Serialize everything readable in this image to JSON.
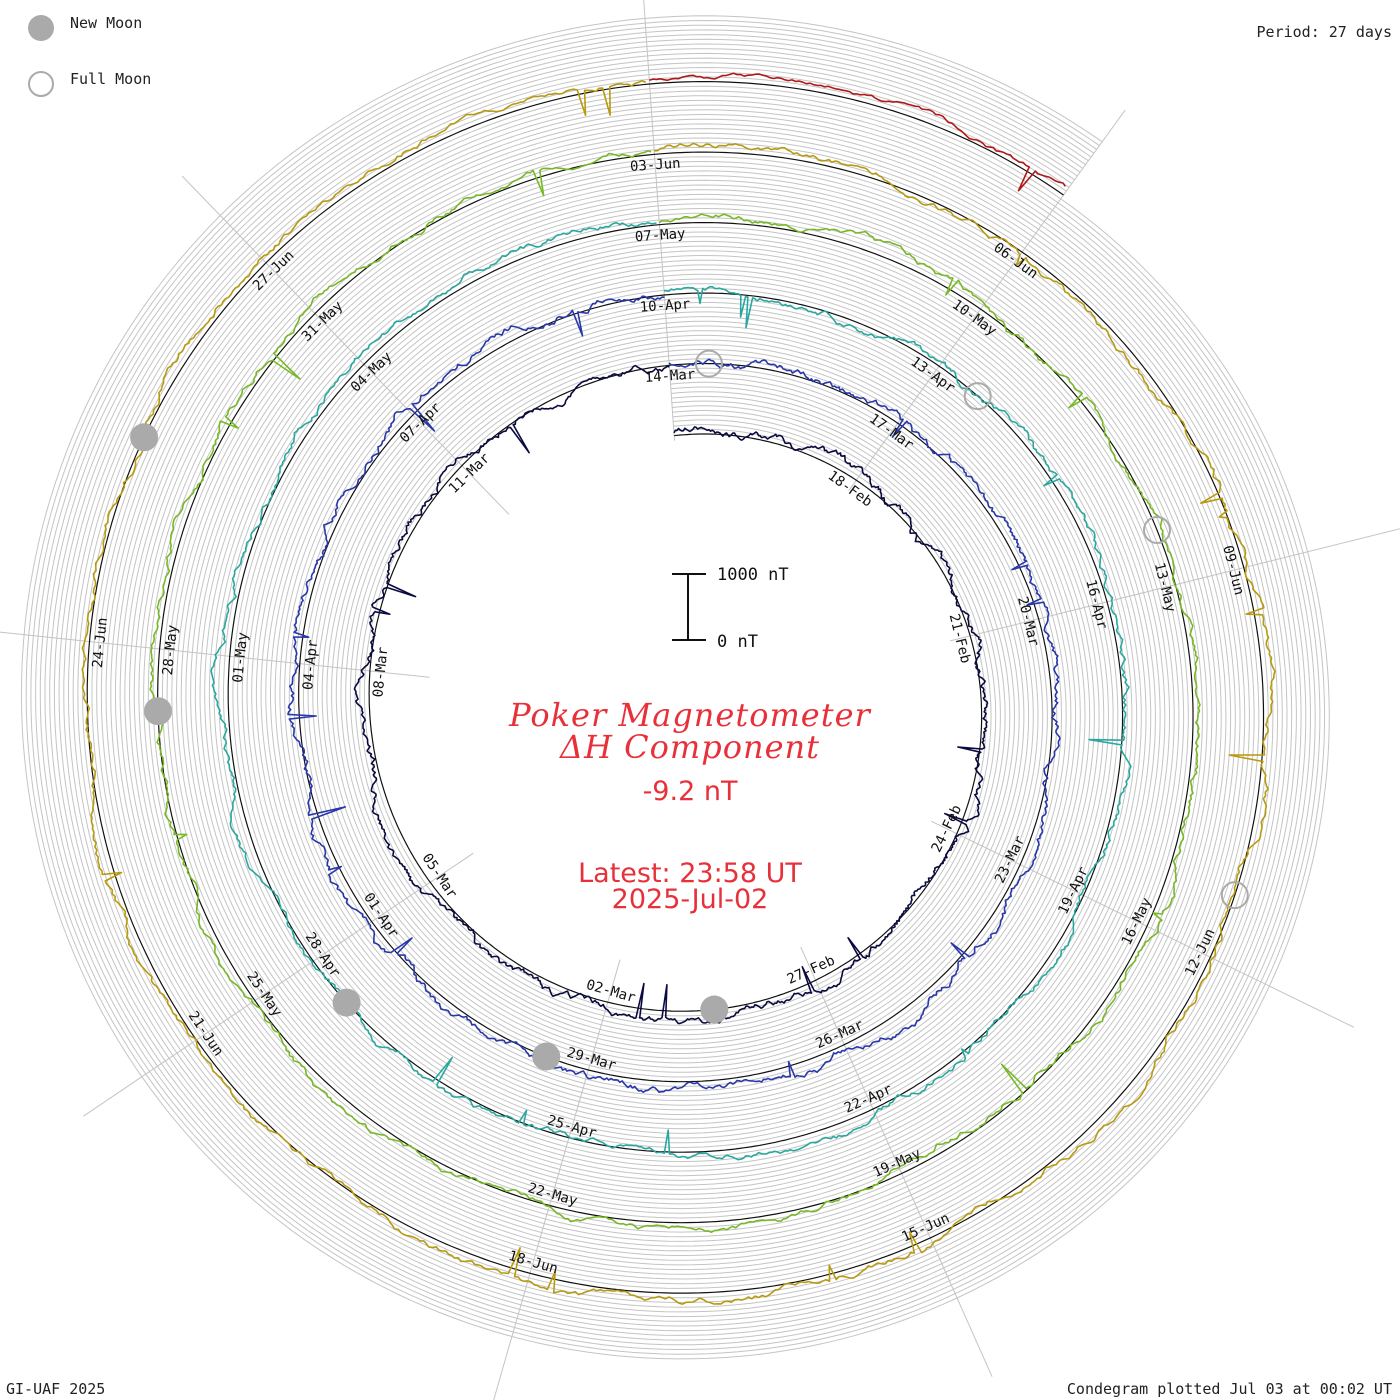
{
  "legend": {
    "new_moon_label": "New Moon",
    "full_moon_label": "Full Moon"
  },
  "period_label": "Period: 27 days",
  "footer": {
    "left": "GI-UAF 2025",
    "right": "Condegram plotted Jul 03 at 00:02 UT"
  },
  "title": {
    "line1": "Poker Magnetometer",
    "line2": "ΔH Component",
    "value": "-9.2 nT",
    "latest": "Latest: 23:58 UT",
    "date": "2025-Jul-02"
  },
  "colors": {
    "new_moon": "#aaaaaa",
    "full_moon": "#aaaaaa",
    "title": "#e8303a",
    "grid": "#c4c4c4",
    "baseline": "#111111"
  },
  "chart_data": {
    "type": "line",
    "title": "Poker Magnetometer ΔH Component",
    "period_days": 27,
    "scale_bar": {
      "max_label": "1000 nT",
      "min_label": "0 nT",
      "max_nT": 1000,
      "min_nT": 0
    },
    "latest_value_nT": -9.2,
    "series": [
      {
        "name": "",
        "start": "2025-02-15",
        "end": "2025-03-13",
        "color": "#0a0a40",
        "activity": 0.9,
        "date_labels": [
          "18-Feb",
          "21-Feb",
          "24-Feb",
          "27-Feb",
          "02-Mar",
          "05-Mar",
          "08-Mar",
          "11-Mar"
        ]
      },
      {
        "name": "",
        "start": "2025-03-14",
        "end": "2025-04-09",
        "color": "#2838a8",
        "activity": 0.9,
        "date_labels": [
          "14-Mar",
          "17-Mar",
          "20-Mar",
          "23-Mar",
          "26-Mar",
          "29-Mar",
          "01-Apr",
          "04-Apr",
          "07-Apr"
        ]
      },
      {
        "name": "",
        "start": "2025-04-10",
        "end": "2025-05-06",
        "color": "#2aa8a0",
        "activity": 0.8,
        "date_labels": [
          "10-Apr",
          "13-Apr",
          "16-Apr",
          "19-Apr",
          "22-Apr",
          "25-Apr",
          "28-Apr",
          "01-May",
          "04-May"
        ]
      },
      {
        "name": "",
        "start": "2025-05-07",
        "end": "2025-06-02",
        "color": "#78b828",
        "activity": 0.8,
        "date_labels": [
          "07-May",
          "10-May",
          "13-May",
          "16-May",
          "19-May",
          "22-May",
          "25-May",
          "28-May",
          "31-May"
        ]
      },
      {
        "name": "",
        "start": "2025-06-03",
        "end": "2025-06-29",
        "color": "#b89a10",
        "activity": 0.85,
        "date_labels": [
          "03-Jun",
          "06-Jun",
          "09-Jun",
          "12-Jun",
          "15-Jun",
          "18-Jun",
          "21-Jun",
          "24-Jun",
          "27-Jun"
        ]
      },
      {
        "name": "",
        "start": "2025-06-30",
        "end": "2025-07-02",
        "color": "#b01818",
        "activity": 0.6,
        "date_labels": []
      }
    ],
    "new_moons": [
      "2025-02-28",
      "2025-03-29",
      "2025-04-27",
      "2025-05-27",
      "2025-06-25"
    ],
    "full_moons": [
      "2025-03-14",
      "2025-04-13",
      "2025-05-12",
      "2025-06-11"
    ]
  }
}
